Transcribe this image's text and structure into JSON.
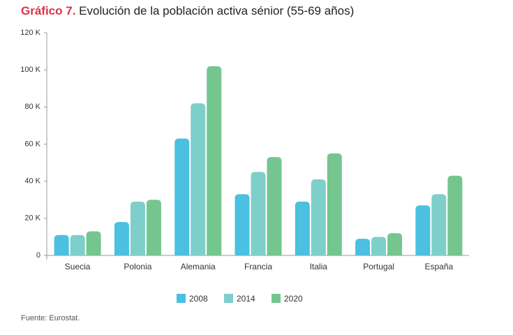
{
  "chart_data": {
    "type": "bar",
    "figure_label": "Gráfico 7.",
    "title": "Evolución de la población activa sénior (55-69 años)",
    "source": "Fuente: Eurostat.",
    "categories": [
      "Suecia",
      "Polonia",
      "Alemania",
      "Francia",
      "Italia",
      "Portugal",
      "España"
    ],
    "series": [
      {
        "name": "2008",
        "color": "#4bc0e0",
        "values": [
          11000,
          18000,
          63000,
          33000,
          29000,
          9000,
          27000
        ]
      },
      {
        "name": "2014",
        "color": "#7ecfca",
        "values": [
          11000,
          29000,
          82000,
          45000,
          41000,
          10000,
          33000
        ]
      },
      {
        "name": "2020",
        "color": "#74c68e",
        "values": [
          13000,
          30000,
          102000,
          53000,
          55000,
          12000,
          43000
        ]
      }
    ],
    "ylim": [
      0,
      120000
    ],
    "yticks": [
      0,
      {
        "value": 20000,
        "label": "20 K"
      },
      {
        "value": 40000,
        "label": "40 K"
      },
      {
        "value": 60000,
        "label": "60 K"
      },
      {
        "value": 80000,
        "label": "80 K"
      },
      {
        "value": 100000,
        "label": "100 K"
      },
      {
        "value": 120000,
        "label": "120 K"
      }
    ],
    "grid": false,
    "legend": "bottom"
  }
}
